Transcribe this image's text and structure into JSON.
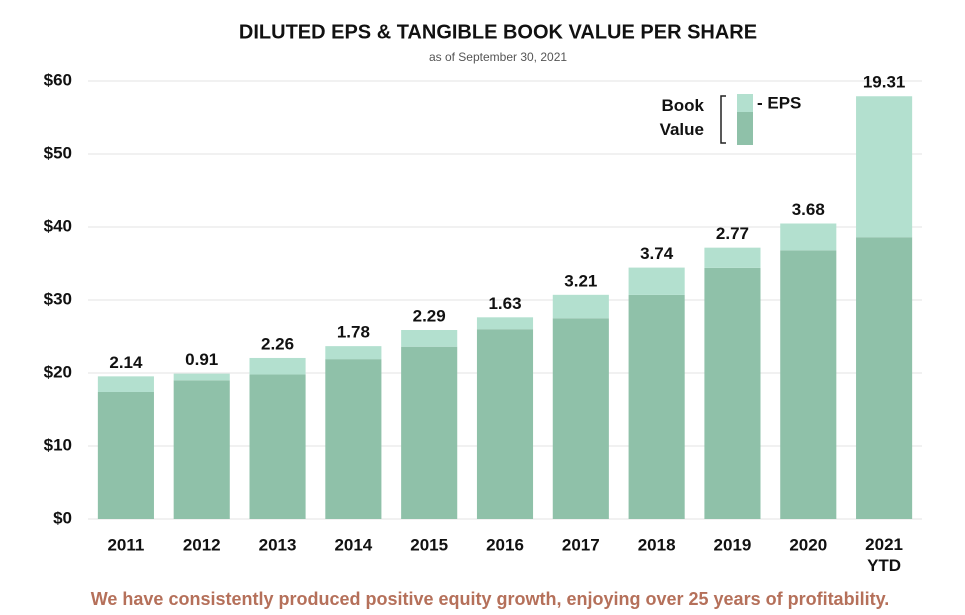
{
  "chart_data": {
    "type": "stacked_bar",
    "title": "DILUTED EPS & TANGIBLE BOOK VALUE PER SHARE",
    "subtitle": "as of September 30, 2021",
    "categories": [
      "2011",
      "2012",
      "2013",
      "2014",
      "2015",
      "2016",
      "2017",
      "2018",
      "2019",
      "2020",
      "2021\nYTD"
    ],
    "series": [
      {
        "name": "Book\nValue",
        "color": "#8fc1a9",
        "values": [
          17.4,
          19.0,
          19.8,
          21.9,
          23.6,
          26.0,
          27.5,
          30.7,
          34.4,
          36.8,
          38.6
        ]
      },
      {
        "name": "- EPS",
        "color": "#b3e0cf",
        "values": [
          2.14,
          0.91,
          2.26,
          1.78,
          2.29,
          1.63,
          3.21,
          3.74,
          2.77,
          3.68,
          19.31
        ]
      }
    ],
    "ylim": [
      0,
      60
    ],
    "yticks": [
      {
        "value": 0,
        "label": "$0"
      },
      {
        "value": 10,
        "label": "$10"
      },
      {
        "value": 20,
        "label": "$20"
      },
      {
        "value": 30,
        "label": "$30"
      },
      {
        "value": 40,
        "label": "$40"
      },
      {
        "value": 50,
        "label": "$50"
      },
      {
        "value": 60,
        "label": "$60"
      }
    ],
    "grid": true,
    "footnote": "We have consistently produced positive equity growth, enjoying over 25 years of profitability."
  }
}
